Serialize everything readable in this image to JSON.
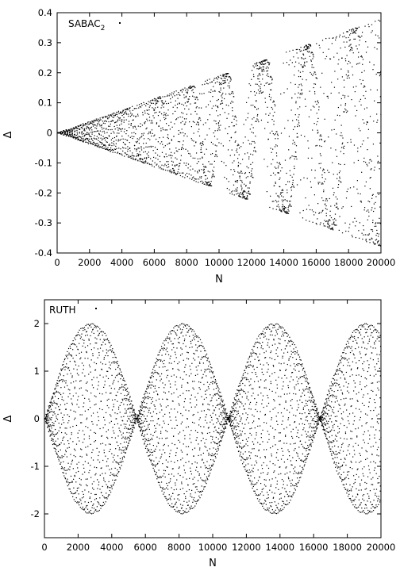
{
  "chart_data": [
    {
      "type": "scatter",
      "legend": "SABAC",
      "legend_sub": "2",
      "legend_placement": "top-left",
      "xlabel": "N",
      "ylabel": "Δ",
      "xlim": [
        0,
        20000
      ],
      "ylim": [
        -0.4,
        0.4
      ],
      "xticks": [
        "0",
        "2000",
        "4000",
        "6000",
        "8000",
        "10000",
        "12000",
        "14000",
        "16000",
        "18000",
        "20000"
      ],
      "yticks": [
        "0.4",
        "0.3",
        "0.2",
        "0.1",
        "0",
        "-0.1",
        "-0.2",
        "-0.3",
        "-0.4"
      ],
      "pattern": {
        "kind": "growing_fan",
        "envelope_end": 0.38,
        "base_period": 1950,
        "period_step": 55,
        "levels": 22
      },
      "series": [
        {
          "values_sample": {
            "x": [
              0,
              5000,
              10000,
              15000,
              20000
            ],
            "y_max": [
              0,
              0.095,
              0.19,
              0.285,
              0.38
            ],
            "y_min": [
              0,
              -0.095,
              -0.19,
              -0.285,
              -0.38
            ]
          }
        }
      ]
    },
    {
      "type": "scatter",
      "legend": "RUTH",
      "legend_sub": "",
      "legend_placement": "top-left",
      "xlabel": "N",
      "ylabel": "Δ",
      "xlim": [
        0,
        20000
      ],
      "ylim": [
        -2.5,
        2.5
      ],
      "xticks": [
        "0",
        "2000",
        "4000",
        "6000",
        "8000",
        "10000",
        "12000",
        "14000",
        "16000",
        "18000",
        "20000"
      ],
      "yticks": [
        "2",
        "1",
        "0",
        "-1",
        "-2"
      ],
      "pattern": {
        "kind": "beating_lobes",
        "amplitude": 2.0,
        "beat_period": 10900,
        "node_positions": [
          0,
          5450,
          10900,
          16350
        ],
        "levels": 16
      },
      "series": [
        {
          "values_sample": {
            "x": [
              0,
              2700,
              5450,
              8100,
              10900,
              13600,
              16350,
              19100
            ],
            "y_max": [
              0,
              2.0,
              0,
              2.0,
              0,
              2.0,
              0,
              2.0
            ],
            "y_min": [
              0,
              -2.0,
              0,
              -2.0,
              0,
              -2.0,
              0,
              -2.0
            ]
          }
        }
      ]
    }
  ],
  "colors": {
    "marker": "#000000",
    "frame": "#000000",
    "background": "#ffffff"
  }
}
